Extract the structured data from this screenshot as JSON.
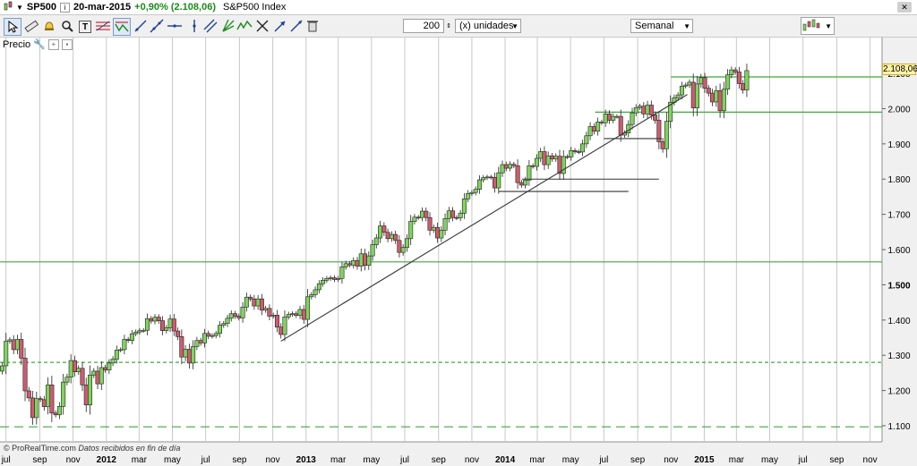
{
  "titlebar": {
    "symbol": "SP500",
    "date": "20-mar-2015",
    "change": "+0,90% (2.108,06)",
    "index_name": "S&P500 Index"
  },
  "toolbar": {
    "units_value": "200",
    "units_label": "(x) unidades",
    "period_label": "Semanal",
    "tool_icons": [
      "cursor-icon",
      "ruler-icon",
      "alarm-icon",
      "zoom-icon",
      "text-icon",
      "fibonacci-icon",
      "chart-style-icon",
      "trendline-icon",
      "line-icon",
      "horizontal-line-icon",
      "channel-icon",
      "andrews-icon",
      "wave-icon",
      "gann-icon",
      "arrow-icon",
      "line-tool-icon",
      "trash-icon"
    ]
  },
  "panel": {
    "price_label": "Precio"
  },
  "footer": {
    "copyright": "© ProRealTime.com",
    "note": "Datos recibidos en fin de día"
  },
  "colors": {
    "up": "#7fd35e",
    "down": "#cc5c70",
    "support": "#3fa83f",
    "grid": "#c8c8c8",
    "trend": "#333333"
  },
  "chart_data": {
    "type": "candlestick",
    "title": "",
    "timeframe": "weekly",
    "ylim": [
      1050,
      2150
    ],
    "y_ticks": [
      "2.100",
      "2.000",
      "1.900",
      "1.800",
      "1.700",
      "1.600",
      "1.500",
      "1.400",
      "1.300",
      "1.200",
      "1.100"
    ],
    "y_tick_values": [
      2100,
      2000,
      1900,
      1800,
      1700,
      1600,
      1500,
      1400,
      1300,
      1200,
      1100
    ],
    "last_price_label": "2.108,06",
    "last_price": 2108.06,
    "x_range": [
      "2011-06-20",
      "2015-11-23"
    ],
    "x_ticks": [
      {
        "label": "jul",
        "date": "2011-07-01",
        "bold": false
      },
      {
        "label": "sep",
        "date": "2011-09-01",
        "bold": false
      },
      {
        "label": "nov",
        "date": "2011-11-01",
        "bold": false
      },
      {
        "label": "2012",
        "date": "2012-01-01",
        "bold": true
      },
      {
        "label": "mar",
        "date": "2012-03-01",
        "bold": false
      },
      {
        "label": "may",
        "date": "2012-05-01",
        "bold": false
      },
      {
        "label": "jul",
        "date": "2012-07-01",
        "bold": false
      },
      {
        "label": "sep",
        "date": "2012-09-01",
        "bold": false
      },
      {
        "label": "nov",
        "date": "2012-11-01",
        "bold": false
      },
      {
        "label": "2013",
        "date": "2013-01-01",
        "bold": true
      },
      {
        "label": "mar",
        "date": "2013-03-01",
        "bold": false
      },
      {
        "label": "may",
        "date": "2013-05-01",
        "bold": false
      },
      {
        "label": "jul",
        "date": "2013-07-01",
        "bold": false
      },
      {
        "label": "sep",
        "date": "2013-09-01",
        "bold": false
      },
      {
        "label": "nov",
        "date": "2013-11-01",
        "bold": false
      },
      {
        "label": "2014",
        "date": "2014-01-01",
        "bold": true
      },
      {
        "label": "mar",
        "date": "2014-03-01",
        "bold": false
      },
      {
        "label": "may",
        "date": "2014-05-01",
        "bold": false
      },
      {
        "label": "jul",
        "date": "2014-07-01",
        "bold": false
      },
      {
        "label": "sep",
        "date": "2014-09-01",
        "bold": false
      },
      {
        "label": "nov",
        "date": "2014-11-01",
        "bold": false
      },
      {
        "label": "2015",
        "date": "2015-01-01",
        "bold": true
      },
      {
        "label": "mar",
        "date": "2015-03-01",
        "bold": false
      },
      {
        "label": "may",
        "date": "2015-05-01",
        "bold": false
      },
      {
        "label": "jul",
        "date": "2015-07-01",
        "bold": false
      },
      {
        "label": "sep",
        "date": "2015-09-01",
        "bold": false
      },
      {
        "label": "nov",
        "date": "2015-11-01",
        "bold": false
      }
    ],
    "candles": [
      {
        "d": "2011-06-24",
        "c": 1270
      },
      {
        "d": "2011-07-01",
        "c": 1340
      },
      {
        "d": "2011-07-08",
        "c": 1344
      },
      {
        "d": "2011-07-15",
        "c": 1316
      },
      {
        "d": "2011-07-22",
        "c": 1345
      },
      {
        "d": "2011-07-29",
        "c": 1292
      },
      {
        "d": "2011-08-05",
        "c": 1199
      },
      {
        "d": "2011-08-12",
        "c": 1179
      },
      {
        "d": "2011-08-19",
        "c": 1123
      },
      {
        "d": "2011-08-26",
        "c": 1177
      },
      {
        "d": "2011-09-02",
        "c": 1174
      },
      {
        "d": "2011-09-09",
        "c": 1154
      },
      {
        "d": "2011-09-16",
        "c": 1216
      },
      {
        "d": "2011-09-23",
        "c": 1136
      },
      {
        "d": "2011-09-30",
        "c": 1131
      },
      {
        "d": "2011-10-07",
        "c": 1155
      },
      {
        "d": "2011-10-14",
        "c": 1224
      },
      {
        "d": "2011-10-21",
        "c": 1238
      },
      {
        "d": "2011-10-28",
        "c": 1285
      },
      {
        "d": "2011-11-04",
        "c": 1253
      },
      {
        "d": "2011-11-11",
        "c": 1263
      },
      {
        "d": "2011-11-18",
        "c": 1216
      },
      {
        "d": "2011-11-25",
        "c": 1159
      },
      {
        "d": "2011-12-02",
        "c": 1244
      },
      {
        "d": "2011-12-09",
        "c": 1255
      },
      {
        "d": "2011-12-16",
        "c": 1219
      },
      {
        "d": "2011-12-23",
        "c": 1265
      },
      {
        "d": "2011-12-30",
        "c": 1258
      },
      {
        "d": "2012-01-06",
        "c": 1278
      },
      {
        "d": "2012-01-13",
        "c": 1289
      },
      {
        "d": "2012-01-20",
        "c": 1315
      },
      {
        "d": "2012-01-27",
        "c": 1316
      },
      {
        "d": "2012-02-03",
        "c": 1345
      },
      {
        "d": "2012-02-10",
        "c": 1342
      },
      {
        "d": "2012-02-17",
        "c": 1361
      },
      {
        "d": "2012-02-24",
        "c": 1366
      },
      {
        "d": "2012-03-02",
        "c": 1370
      },
      {
        "d": "2012-03-09",
        "c": 1371
      },
      {
        "d": "2012-03-16",
        "c": 1404
      },
      {
        "d": "2012-03-23",
        "c": 1397
      },
      {
        "d": "2012-03-30",
        "c": 1408
      },
      {
        "d": "2012-04-06",
        "c": 1398
      },
      {
        "d": "2012-04-13",
        "c": 1370
      },
      {
        "d": "2012-04-20",
        "c": 1378
      },
      {
        "d": "2012-04-27",
        "c": 1403
      },
      {
        "d": "2012-05-04",
        "c": 1369
      },
      {
        "d": "2012-05-11",
        "c": 1353
      },
      {
        "d": "2012-05-18",
        "c": 1295
      },
      {
        "d": "2012-05-25",
        "c": 1317
      },
      {
        "d": "2012-06-01",
        "c": 1278
      },
      {
        "d": "2012-06-08",
        "c": 1325
      },
      {
        "d": "2012-06-15",
        "c": 1342
      },
      {
        "d": "2012-06-22",
        "c": 1335
      },
      {
        "d": "2012-06-29",
        "c": 1362
      },
      {
        "d": "2012-07-06",
        "c": 1354
      },
      {
        "d": "2012-07-13",
        "c": 1356
      },
      {
        "d": "2012-07-20",
        "c": 1362
      },
      {
        "d": "2012-07-27",
        "c": 1385
      },
      {
        "d": "2012-08-03",
        "c": 1390
      },
      {
        "d": "2012-08-10",
        "c": 1405
      },
      {
        "d": "2012-08-17",
        "c": 1418
      },
      {
        "d": "2012-08-24",
        "c": 1411
      },
      {
        "d": "2012-08-31",
        "c": 1406
      },
      {
        "d": "2012-09-07",
        "c": 1437
      },
      {
        "d": "2012-09-14",
        "c": 1465
      },
      {
        "d": "2012-09-21",
        "c": 1460
      },
      {
        "d": "2012-09-28",
        "c": 1440
      },
      {
        "d": "2012-10-05",
        "c": 1460
      },
      {
        "d": "2012-10-12",
        "c": 1428
      },
      {
        "d": "2012-10-19",
        "c": 1433
      },
      {
        "d": "2012-10-26",
        "c": 1411
      },
      {
        "d": "2012-11-02",
        "c": 1414
      },
      {
        "d": "2012-11-09",
        "c": 1380
      },
      {
        "d": "2012-11-16",
        "c": 1359
      },
      {
        "d": "2012-11-23",
        "c": 1409
      },
      {
        "d": "2012-11-30",
        "c": 1416
      },
      {
        "d": "2012-12-07",
        "c": 1418
      },
      {
        "d": "2012-12-14",
        "c": 1413
      },
      {
        "d": "2012-12-21",
        "c": 1430
      },
      {
        "d": "2012-12-28",
        "c": 1402
      },
      {
        "d": "2013-01-04",
        "c": 1466
      },
      {
        "d": "2013-01-11",
        "c": 1472
      },
      {
        "d": "2013-01-18",
        "c": 1486
      },
      {
        "d": "2013-01-25",
        "c": 1503
      },
      {
        "d": "2013-02-01",
        "c": 1513
      },
      {
        "d": "2013-02-08",
        "c": 1518
      },
      {
        "d": "2013-02-15",
        "c": 1520
      },
      {
        "d": "2013-02-22",
        "c": 1515
      },
      {
        "d": "2013-03-01",
        "c": 1518
      },
      {
        "d": "2013-03-08",
        "c": 1551
      },
      {
        "d": "2013-03-15",
        "c": 1560
      },
      {
        "d": "2013-03-22",
        "c": 1556
      },
      {
        "d": "2013-03-29",
        "c": 1569
      },
      {
        "d": "2013-04-05",
        "c": 1553
      },
      {
        "d": "2013-04-12",
        "c": 1588
      },
      {
        "d": "2013-04-19",
        "c": 1555
      },
      {
        "d": "2013-04-26",
        "c": 1582
      },
      {
        "d": "2013-05-03",
        "c": 1614
      },
      {
        "d": "2013-05-10",
        "c": 1633
      },
      {
        "d": "2013-05-17",
        "c": 1667
      },
      {
        "d": "2013-05-24",
        "c": 1649
      },
      {
        "d": "2013-05-31",
        "c": 1631
      },
      {
        "d": "2013-06-07",
        "c": 1643
      },
      {
        "d": "2013-06-14",
        "c": 1626
      },
      {
        "d": "2013-06-21",
        "c": 1592
      },
      {
        "d": "2013-06-28",
        "c": 1606
      },
      {
        "d": "2013-07-05",
        "c": 1631
      },
      {
        "d": "2013-07-12",
        "c": 1680
      },
      {
        "d": "2013-07-19",
        "c": 1692
      },
      {
        "d": "2013-07-26",
        "c": 1691
      },
      {
        "d": "2013-08-02",
        "c": 1709
      },
      {
        "d": "2013-08-09",
        "c": 1691
      },
      {
        "d": "2013-08-16",
        "c": 1655
      },
      {
        "d": "2013-08-23",
        "c": 1663
      },
      {
        "d": "2013-08-30",
        "c": 1633
      },
      {
        "d": "2013-09-06",
        "c": 1655
      },
      {
        "d": "2013-09-13",
        "c": 1688
      },
      {
        "d": "2013-09-20",
        "c": 1710
      },
      {
        "d": "2013-09-27",
        "c": 1691
      },
      {
        "d": "2013-10-04",
        "c": 1690
      },
      {
        "d": "2013-10-11",
        "c": 1703
      },
      {
        "d": "2013-10-18",
        "c": 1744
      },
      {
        "d": "2013-10-25",
        "c": 1759
      },
      {
        "d": "2013-11-01",
        "c": 1762
      },
      {
        "d": "2013-11-08",
        "c": 1771
      },
      {
        "d": "2013-11-15",
        "c": 1798
      },
      {
        "d": "2013-11-22",
        "c": 1804
      },
      {
        "d": "2013-11-29",
        "c": 1806
      },
      {
        "d": "2013-12-06",
        "c": 1805
      },
      {
        "d": "2013-12-13",
        "c": 1775
      },
      {
        "d": "2013-12-20",
        "c": 1818
      },
      {
        "d": "2013-12-27",
        "c": 1841
      },
      {
        "d": "2014-01-03",
        "c": 1831
      },
      {
        "d": "2014-01-10",
        "c": 1842
      },
      {
        "d": "2014-01-17",
        "c": 1838
      },
      {
        "d": "2014-01-24",
        "c": 1790
      },
      {
        "d": "2014-01-31",
        "c": 1783
      },
      {
        "d": "2014-02-07",
        "c": 1797
      },
      {
        "d": "2014-02-14",
        "c": 1838
      },
      {
        "d": "2014-02-21",
        "c": 1836
      },
      {
        "d": "2014-02-28",
        "c": 1859
      },
      {
        "d": "2014-03-07",
        "c": 1878
      },
      {
        "d": "2014-03-14",
        "c": 1841
      },
      {
        "d": "2014-03-21",
        "c": 1866
      },
      {
        "d": "2014-03-28",
        "c": 1857
      },
      {
        "d": "2014-04-04",
        "c": 1865
      },
      {
        "d": "2014-04-11",
        "c": 1816
      },
      {
        "d": "2014-04-18",
        "c": 1864
      },
      {
        "d": "2014-04-25",
        "c": 1863
      },
      {
        "d": "2014-05-02",
        "c": 1881
      },
      {
        "d": "2014-05-09",
        "c": 1878
      },
      {
        "d": "2014-05-16",
        "c": 1877
      },
      {
        "d": "2014-05-23",
        "c": 1900
      },
      {
        "d": "2014-05-30",
        "c": 1923
      },
      {
        "d": "2014-06-06",
        "c": 1949
      },
      {
        "d": "2014-06-13",
        "c": 1936
      },
      {
        "d": "2014-06-20",
        "c": 1962
      },
      {
        "d": "2014-06-27",
        "c": 1960
      },
      {
        "d": "2014-07-04",
        "c": 1985
      },
      {
        "d": "2014-07-11",
        "c": 1967
      },
      {
        "d": "2014-07-18",
        "c": 1978
      },
      {
        "d": "2014-07-25",
        "c": 1978
      },
      {
        "d": "2014-08-01",
        "c": 1925
      },
      {
        "d": "2014-08-08",
        "c": 1931
      },
      {
        "d": "2014-08-15",
        "c": 1955
      },
      {
        "d": "2014-08-22",
        "c": 1988
      },
      {
        "d": "2014-08-29",
        "c": 2003
      },
      {
        "d": "2014-09-05",
        "c": 2007
      },
      {
        "d": "2014-09-12",
        "c": 1985
      },
      {
        "d": "2014-09-19",
        "c": 2010
      },
      {
        "d": "2014-09-26",
        "c": 1982
      },
      {
        "d": "2014-10-03",
        "c": 1967
      },
      {
        "d": "2014-10-10",
        "c": 1906
      },
      {
        "d": "2014-10-17",
        "c": 1886
      },
      {
        "d": "2014-10-24",
        "c": 1964
      },
      {
        "d": "2014-10-31",
        "c": 2018
      },
      {
        "d": "2014-11-07",
        "c": 2031
      },
      {
        "d": "2014-11-14",
        "c": 2039
      },
      {
        "d": "2014-11-21",
        "c": 2064
      },
      {
        "d": "2014-11-28",
        "c": 2067
      },
      {
        "d": "2014-12-05",
        "c": 2075
      },
      {
        "d": "2014-12-12",
        "c": 2002
      },
      {
        "d": "2014-12-19",
        "c": 2070
      },
      {
        "d": "2014-12-26",
        "c": 2088
      },
      {
        "d": "2015-01-02",
        "c": 2058
      },
      {
        "d": "2015-01-09",
        "c": 2044
      },
      {
        "d": "2015-01-16",
        "c": 2019
      },
      {
        "d": "2015-01-23",
        "c": 2051
      },
      {
        "d": "2015-01-30",
        "c": 1994
      },
      {
        "d": "2015-02-06",
        "c": 2055
      },
      {
        "d": "2015-02-13",
        "c": 2096
      },
      {
        "d": "2015-02-20",
        "c": 2110
      },
      {
        "d": "2015-02-27",
        "c": 2104
      },
      {
        "d": "2015-03-06",
        "c": 2071
      },
      {
        "d": "2015-03-13",
        "c": 2053
      },
      {
        "d": "2015-03-20",
        "c": 2108
      }
    ],
    "horizontal_lines": [
      {
        "value": 2090,
        "style": "solid",
        "color": "#3fa83f",
        "from": "2014-11-01"
      },
      {
        "value": 1990,
        "style": "solid",
        "color": "#3fa83f",
        "from": "2014-06-15"
      },
      {
        "value": 1565,
        "style": "solid",
        "color": "#3fa83f",
        "from": "2011-06-20"
      },
      {
        "value": 1280,
        "style": "dashed",
        "color": "#3fa83f",
        "from": "2011-06-20"
      },
      {
        "value": 1097,
        "style": "longdash",
        "color": "#3fa83f",
        "from": "2011-06-20"
      }
    ],
    "drawn_lines": [
      {
        "from": [
          "2012-11-16",
          1340
        ],
        "to": [
          "2014-12-01",
          2040
        ],
        "color": "#333333"
      },
      {
        "from": [
          "2014-07-01",
          1915
        ],
        "to": [
          "2014-10-15",
          1915
        ],
        "color": "#333333"
      },
      {
        "from": [
          "2014-02-01",
          1800
        ],
        "to": [
          "2014-10-10",
          1800
        ],
        "color": "#333333"
      },
      {
        "from": [
          "2013-12-20",
          1765
        ],
        "to": [
          "2014-08-15",
          1765
        ],
        "color": "#333333"
      }
    ]
  }
}
